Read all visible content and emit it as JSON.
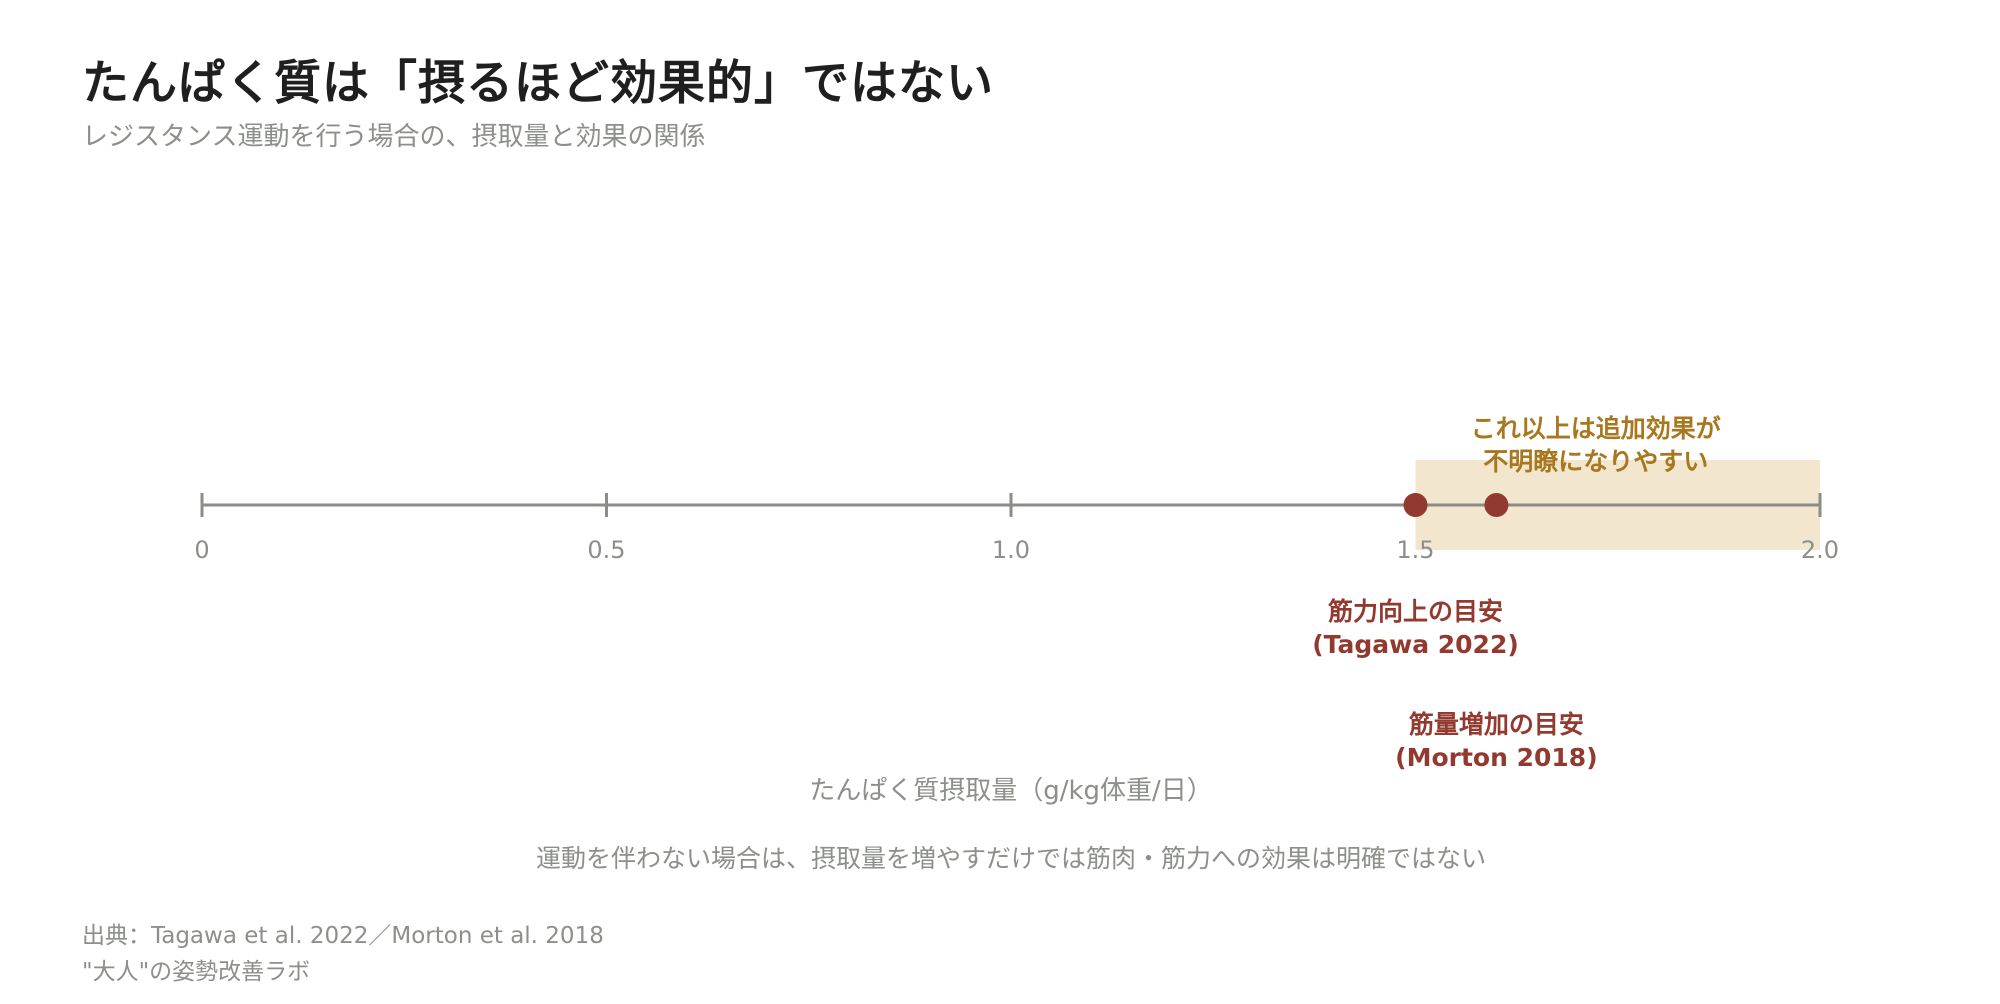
{
  "title": "たんぱく質は「摂るほど効果的」ではない",
  "subtitle": "レジスタンス運動を行う場合の、摂取量と効果の関係",
  "chart_data": {
    "type": "scatter",
    "xlim": [
      0,
      2.0
    ],
    "ticks": [
      {
        "value": 0,
        "label": "0"
      },
      {
        "value": 0.5,
        "label": "0.5"
      },
      {
        "value": 1.0,
        "label": "1.0"
      },
      {
        "value": 1.5,
        "label": "1.5"
      },
      {
        "value": 2.0,
        "label": "2.0"
      }
    ],
    "xlabel": "たんぱく質摂取量（g/kg体重/日）",
    "shaded_region": {
      "from": 1.5,
      "to": 2.0,
      "label_lines": [
        "これ以上は追加効果が",
        "不明瞭になりやすい"
      ]
    },
    "points": [
      {
        "x": 1.5,
        "label_lines": [
          "筋力向上の目安",
          "(Tagawa 2022)"
        ]
      },
      {
        "x": 1.6,
        "label_lines": [
          "筋量増加の目安",
          "(Morton 2018)"
        ]
      }
    ],
    "note": "運動を伴わない場合は、摂取量を増やすだけでは筋肉・筋力への効果は明確ではない",
    "colors": {
      "axis": "#8a8d88",
      "tick_label": "#8c8f8a",
      "point": "#933a30",
      "point_label": "#933a30",
      "band": "#f2e6cf",
      "band_label": "#a9781e",
      "note": "#8c8f8a"
    }
  },
  "source": {
    "line1": "出典：Tagawa et al. 2022／Morton et al. 2018",
    "line2": "\"大人\"の姿勢改善ラボ"
  }
}
